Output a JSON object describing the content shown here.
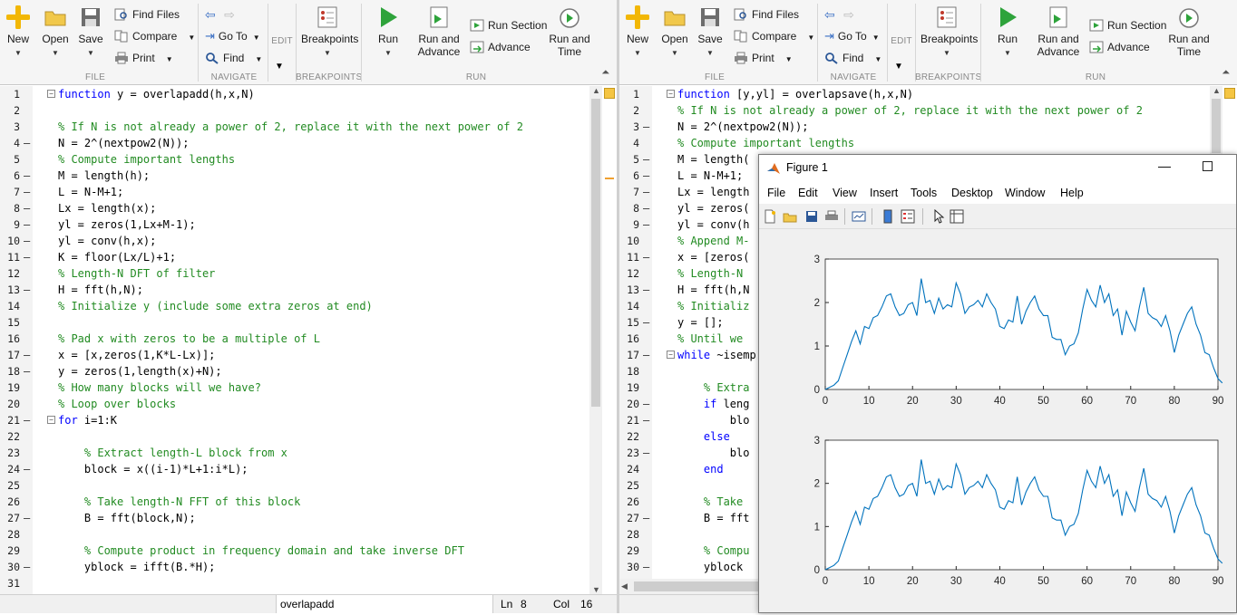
{
  "ribbon": {
    "file_group": "FILE",
    "navigate_group": "NAVIGATE",
    "edit_group": "EDIT",
    "breakpoints_group": "BREAKPOINTS",
    "run_group": "RUN",
    "new_label": "New",
    "open_label": "Open",
    "save_label": "Save",
    "find_files_label": "Find Files",
    "compare_label": "Compare",
    "print_label": "Print",
    "goto_label": "Go To",
    "find_label": "Find",
    "breakpoints_label": "Breakpoints",
    "run_label": "Run",
    "run_advance_label1": "Run and",
    "run_advance_label2": "Advance",
    "run_section_label": "Run Section",
    "advance_label": "Advance",
    "run_time_label1": "Run and",
    "run_time_label2": "Time"
  },
  "left_editor": {
    "lines": [
      {
        "n": "1",
        "fold": "minus",
        "dash": false,
        "tokens": [
          [
            "kw",
            "function"
          ],
          [
            "tx",
            " y = overlapadd(h,x,N)"
          ]
        ]
      },
      {
        "n": "2",
        "fold": "",
        "dash": false,
        "tokens": []
      },
      {
        "n": "3",
        "fold": "",
        "dash": false,
        "tokens": [
          [
            "cm",
            "% If N is not already a power of 2, replace it with the next power of 2"
          ]
        ]
      },
      {
        "n": "4",
        "fold": "",
        "dash": true,
        "tokens": [
          [
            "tx",
            "N = 2^(nextpow2(N));"
          ]
        ]
      },
      {
        "n": "5",
        "fold": "",
        "dash": false,
        "tokens": [
          [
            "cm",
            "% Compute important lengths"
          ]
        ]
      },
      {
        "n": "6",
        "fold": "",
        "dash": true,
        "tokens": [
          [
            "tx",
            "M = length(h);"
          ]
        ]
      },
      {
        "n": "7",
        "fold": "",
        "dash": true,
        "tokens": [
          [
            "tx",
            "L = N-M+1;"
          ]
        ]
      },
      {
        "n": "8",
        "fold": "",
        "dash": true,
        "tokens": [
          [
            "tx",
            "Lx = length(x);"
          ]
        ]
      },
      {
        "n": "9",
        "fold": "",
        "dash": true,
        "tokens": [
          [
            "tx",
            "yl = zeros(1,Lx+M-1);"
          ]
        ]
      },
      {
        "n": "10",
        "fold": "",
        "dash": true,
        "tokens": [
          [
            "tx",
            "yl = conv(h,x);"
          ]
        ]
      },
      {
        "n": "11",
        "fold": "",
        "dash": true,
        "tokens": [
          [
            "tx",
            "K = floor(Lx/L)+1;"
          ]
        ]
      },
      {
        "n": "12",
        "fold": "",
        "dash": false,
        "tokens": [
          [
            "cm",
            "% Length-N DFT of filter"
          ]
        ]
      },
      {
        "n": "13",
        "fold": "",
        "dash": true,
        "tokens": [
          [
            "tx",
            "H = fft(h,N);"
          ]
        ]
      },
      {
        "n": "14",
        "fold": "",
        "dash": false,
        "tokens": [
          [
            "cm",
            "% Initialize y (include some extra zeros at end)"
          ]
        ]
      },
      {
        "n": "15",
        "fold": "",
        "dash": false,
        "tokens": []
      },
      {
        "n": "16",
        "fold": "",
        "dash": false,
        "tokens": [
          [
            "cm",
            "% Pad x with zeros to be a multiple of L"
          ]
        ]
      },
      {
        "n": "17",
        "fold": "",
        "dash": true,
        "tokens": [
          [
            "tx",
            "x = [x,zeros(1,K*L-Lx)];"
          ]
        ]
      },
      {
        "n": "18",
        "fold": "",
        "dash": true,
        "tokens": [
          [
            "tx",
            "y = zeros(1,length(x)+N);"
          ]
        ]
      },
      {
        "n": "19",
        "fold": "",
        "dash": false,
        "tokens": [
          [
            "cm",
            "% How many blocks will we have?"
          ]
        ]
      },
      {
        "n": "20",
        "fold": "",
        "dash": false,
        "tokens": [
          [
            "cm",
            "% Loop over blocks"
          ]
        ]
      },
      {
        "n": "21",
        "fold": "minus",
        "dash": true,
        "tokens": [
          [
            "kw",
            "for"
          ],
          [
            "tx",
            " i=1:K"
          ]
        ]
      },
      {
        "n": "22",
        "fold": "",
        "dash": false,
        "tokens": []
      },
      {
        "n": "23",
        "fold": "",
        "dash": false,
        "tokens": [
          [
            "tx",
            "    "
          ],
          [
            "cm",
            "% Extract length-L block from x"
          ]
        ]
      },
      {
        "n": "24",
        "fold": "",
        "dash": true,
        "tokens": [
          [
            "tx",
            "    block = x((i-1)*L+1:i*L);"
          ]
        ]
      },
      {
        "n": "25",
        "fold": "",
        "dash": false,
        "tokens": []
      },
      {
        "n": "26",
        "fold": "",
        "dash": false,
        "tokens": [
          [
            "tx",
            "    "
          ],
          [
            "cm",
            "% Take length-N FFT of this block"
          ]
        ]
      },
      {
        "n": "27",
        "fold": "",
        "dash": true,
        "tokens": [
          [
            "tx",
            "    B = fft(block,N);"
          ]
        ]
      },
      {
        "n": "28",
        "fold": "",
        "dash": false,
        "tokens": []
      },
      {
        "n": "29",
        "fold": "",
        "dash": false,
        "tokens": [
          [
            "tx",
            "    "
          ],
          [
            "cm",
            "% Compute product in frequency domain and take inverse DFT"
          ]
        ]
      },
      {
        "n": "30",
        "fold": "",
        "dash": true,
        "tokens": [
          [
            "tx",
            "    yblock = ifft(B.*H);"
          ]
        ]
      },
      {
        "n": "31",
        "fold": "",
        "dash": false,
        "tokens": []
      }
    ],
    "status_file": "overlapadd",
    "status_ln_label": "Ln",
    "status_ln": "8",
    "status_col_label": "Col",
    "status_col": "16"
  },
  "right_editor": {
    "lines": [
      {
        "n": "1",
        "fold": "minus",
        "dash": false,
        "tokens": [
          [
            "kw",
            "function"
          ],
          [
            "tx",
            " [y,yl] = overlapsave(h,x,N)"
          ]
        ]
      },
      {
        "n": "2",
        "fold": "",
        "dash": false,
        "tokens": [
          [
            "cm",
            "% If N is not already a power of 2, replace it with the next power of 2"
          ]
        ]
      },
      {
        "n": "3",
        "fold": "",
        "dash": true,
        "tokens": [
          [
            "tx",
            "N = 2^(nextpow2(N));"
          ]
        ]
      },
      {
        "n": "4",
        "fold": "",
        "dash": false,
        "tokens": [
          [
            "cm",
            "% Compute important lengths"
          ]
        ]
      },
      {
        "n": "5",
        "fold": "",
        "dash": true,
        "tokens": [
          [
            "tx",
            "M = length("
          ]
        ]
      },
      {
        "n": "6",
        "fold": "",
        "dash": true,
        "tokens": [
          [
            "tx",
            "L = N-M+1;"
          ]
        ]
      },
      {
        "n": "7",
        "fold": "",
        "dash": true,
        "tokens": [
          [
            "tx",
            "Lx = length"
          ]
        ]
      },
      {
        "n": "8",
        "fold": "",
        "dash": true,
        "tokens": [
          [
            "tx",
            "yl = zeros("
          ]
        ]
      },
      {
        "n": "9",
        "fold": "",
        "dash": true,
        "tokens": [
          [
            "tx",
            "yl = conv(h"
          ]
        ]
      },
      {
        "n": "10",
        "fold": "",
        "dash": false,
        "tokens": [
          [
            "cm",
            "% Append M-"
          ]
        ]
      },
      {
        "n": "11",
        "fold": "",
        "dash": true,
        "tokens": [
          [
            "tx",
            "x = [zeros("
          ]
        ]
      },
      {
        "n": "12",
        "fold": "",
        "dash": false,
        "tokens": [
          [
            "cm",
            "% Length-N "
          ]
        ]
      },
      {
        "n": "13",
        "fold": "",
        "dash": true,
        "tokens": [
          [
            "tx",
            "H = fft(h,N"
          ]
        ]
      },
      {
        "n": "14",
        "fold": "",
        "dash": false,
        "tokens": [
          [
            "cm",
            "% Initializ"
          ]
        ]
      },
      {
        "n": "15",
        "fold": "",
        "dash": true,
        "tokens": [
          [
            "tx",
            "y = [];"
          ]
        ]
      },
      {
        "n": "16",
        "fold": "",
        "dash": false,
        "tokens": [
          [
            "cm",
            "% Until we "
          ]
        ]
      },
      {
        "n": "17",
        "fold": "minus",
        "dash": true,
        "tokens": [
          [
            "kw",
            "while"
          ],
          [
            "tx",
            " ~isemp"
          ]
        ]
      },
      {
        "n": "18",
        "fold": "",
        "dash": false,
        "tokens": []
      },
      {
        "n": "19",
        "fold": "",
        "dash": false,
        "tokens": [
          [
            "tx",
            "    "
          ],
          [
            "cm",
            "% Extra"
          ]
        ]
      },
      {
        "n": "20",
        "fold": "",
        "dash": true,
        "tokens": [
          [
            "tx",
            "    "
          ],
          [
            "kw",
            "if"
          ],
          [
            "tx",
            " leng"
          ]
        ]
      },
      {
        "n": "21",
        "fold": "",
        "dash": true,
        "tokens": [
          [
            "tx",
            "        blo"
          ]
        ]
      },
      {
        "n": "22",
        "fold": "",
        "dash": false,
        "tokens": [
          [
            "tx",
            "    "
          ],
          [
            "kw",
            "else"
          ]
        ]
      },
      {
        "n": "23",
        "fold": "",
        "dash": true,
        "tokens": [
          [
            "tx",
            "        blo"
          ]
        ]
      },
      {
        "n": "24",
        "fold": "",
        "dash": false,
        "tokens": [
          [
            "tx",
            "    "
          ],
          [
            "kw",
            "end"
          ]
        ]
      },
      {
        "n": "25",
        "fold": "",
        "dash": false,
        "tokens": []
      },
      {
        "n": "26",
        "fold": "",
        "dash": false,
        "tokens": [
          [
            "tx",
            "    "
          ],
          [
            "cm",
            "% Take "
          ]
        ]
      },
      {
        "n": "27",
        "fold": "",
        "dash": true,
        "tokens": [
          [
            "tx",
            "    B = fft"
          ]
        ]
      },
      {
        "n": "28",
        "fold": "",
        "dash": false,
        "tokens": []
      },
      {
        "n": "29",
        "fold": "",
        "dash": false,
        "tokens": [
          [
            "tx",
            "    "
          ],
          [
            "cm",
            "% Compu"
          ]
        ]
      },
      {
        "n": "30",
        "fold": "",
        "dash": true,
        "tokens": [
          [
            "tx",
            "    yblock "
          ]
        ]
      }
    ]
  },
  "figure": {
    "title": "Figure 1",
    "menu": [
      "File",
      "Edit",
      "View",
      "Insert",
      "Tools",
      "Desktop",
      "Window",
      "Help"
    ]
  },
  "colors": {
    "keyword": "#0000ff",
    "comment": "#228b22",
    "plot_line": "#0072bd"
  },
  "chart_data": [
    {
      "type": "line",
      "title": "",
      "xlabel": "",
      "ylabel": "",
      "xlim": [
        0,
        90
      ],
      "ylim": [
        0,
        3
      ],
      "xticks": [
        "0",
        "10",
        "20",
        "30",
        "40",
        "50",
        "60",
        "70",
        "80",
        "90"
      ],
      "yticks": [
        "0",
        "1",
        "2",
        "3"
      ],
      "grid": false,
      "series": [
        {
          "values": [
            0,
            0.05,
            0.1,
            0.2,
            0.5,
            0.8,
            1.1,
            1.35,
            1.05,
            1.45,
            1.4,
            1.65,
            1.7,
            1.9,
            2.15,
            2.2,
            1.9,
            1.7,
            1.75,
            1.95,
            2.0,
            1.7,
            2.55,
            2.0,
            2.05,
            1.75,
            2.1,
            1.85,
            1.95,
            1.9,
            2.45,
            2.2,
            1.75,
            1.9,
            1.95,
            2.05,
            1.9,
            2.2,
            2.0,
            1.85,
            1.45,
            1.4,
            1.6,
            1.55,
            2.15,
            1.5,
            1.8,
            2.0,
            2.15,
            1.85,
            1.7,
            1.7,
            1.2,
            1.15,
            1.15,
            0.8,
            1.0,
            1.05,
            1.3,
            1.85,
            2.3,
            2.05,
            1.9,
            2.4,
            2.0,
            2.2,
            1.7,
            1.85,
            1.25,
            1.8,
            1.55,
            1.35,
            1.9,
            2.35,
            1.75,
            1.65,
            1.6,
            1.45,
            1.7,
            1.35,
            0.85,
            1.25,
            1.5,
            1.75,
            1.9,
            1.5,
            1.25,
            0.85,
            0.8,
            0.5,
            0.25,
            0.15
          ]
        }
      ]
    },
    {
      "type": "line",
      "title": "",
      "xlabel": "",
      "ylabel": "",
      "xlim": [
        0,
        90
      ],
      "ylim": [
        0,
        3
      ],
      "xticks": [
        "0",
        "10",
        "20",
        "30",
        "40",
        "50",
        "60",
        "70",
        "80",
        "90"
      ],
      "yticks": [
        "0",
        "1",
        "2",
        "3"
      ],
      "grid": false,
      "series": [
        {
          "values": [
            0,
            0.05,
            0.1,
            0.2,
            0.5,
            0.8,
            1.1,
            1.35,
            1.05,
            1.45,
            1.4,
            1.65,
            1.7,
            1.9,
            2.15,
            2.2,
            1.9,
            1.7,
            1.75,
            1.95,
            2.0,
            1.7,
            2.55,
            2.0,
            2.05,
            1.75,
            2.1,
            1.85,
            1.95,
            1.9,
            2.45,
            2.2,
            1.75,
            1.9,
            1.95,
            2.05,
            1.9,
            2.2,
            2.0,
            1.85,
            1.45,
            1.4,
            1.6,
            1.55,
            2.15,
            1.5,
            1.8,
            2.0,
            2.15,
            1.85,
            1.7,
            1.7,
            1.2,
            1.15,
            1.15,
            0.8,
            1.0,
            1.05,
            1.3,
            1.85,
            2.3,
            2.05,
            1.9,
            2.4,
            2.0,
            2.2,
            1.7,
            1.85,
            1.25,
            1.8,
            1.55,
            1.35,
            1.9,
            2.35,
            1.75,
            1.65,
            1.6,
            1.45,
            1.7,
            1.35,
            0.85,
            1.25,
            1.5,
            1.75,
            1.9,
            1.5,
            1.25,
            0.85,
            0.8,
            0.5,
            0.25,
            0.15
          ]
        }
      ]
    }
  ]
}
